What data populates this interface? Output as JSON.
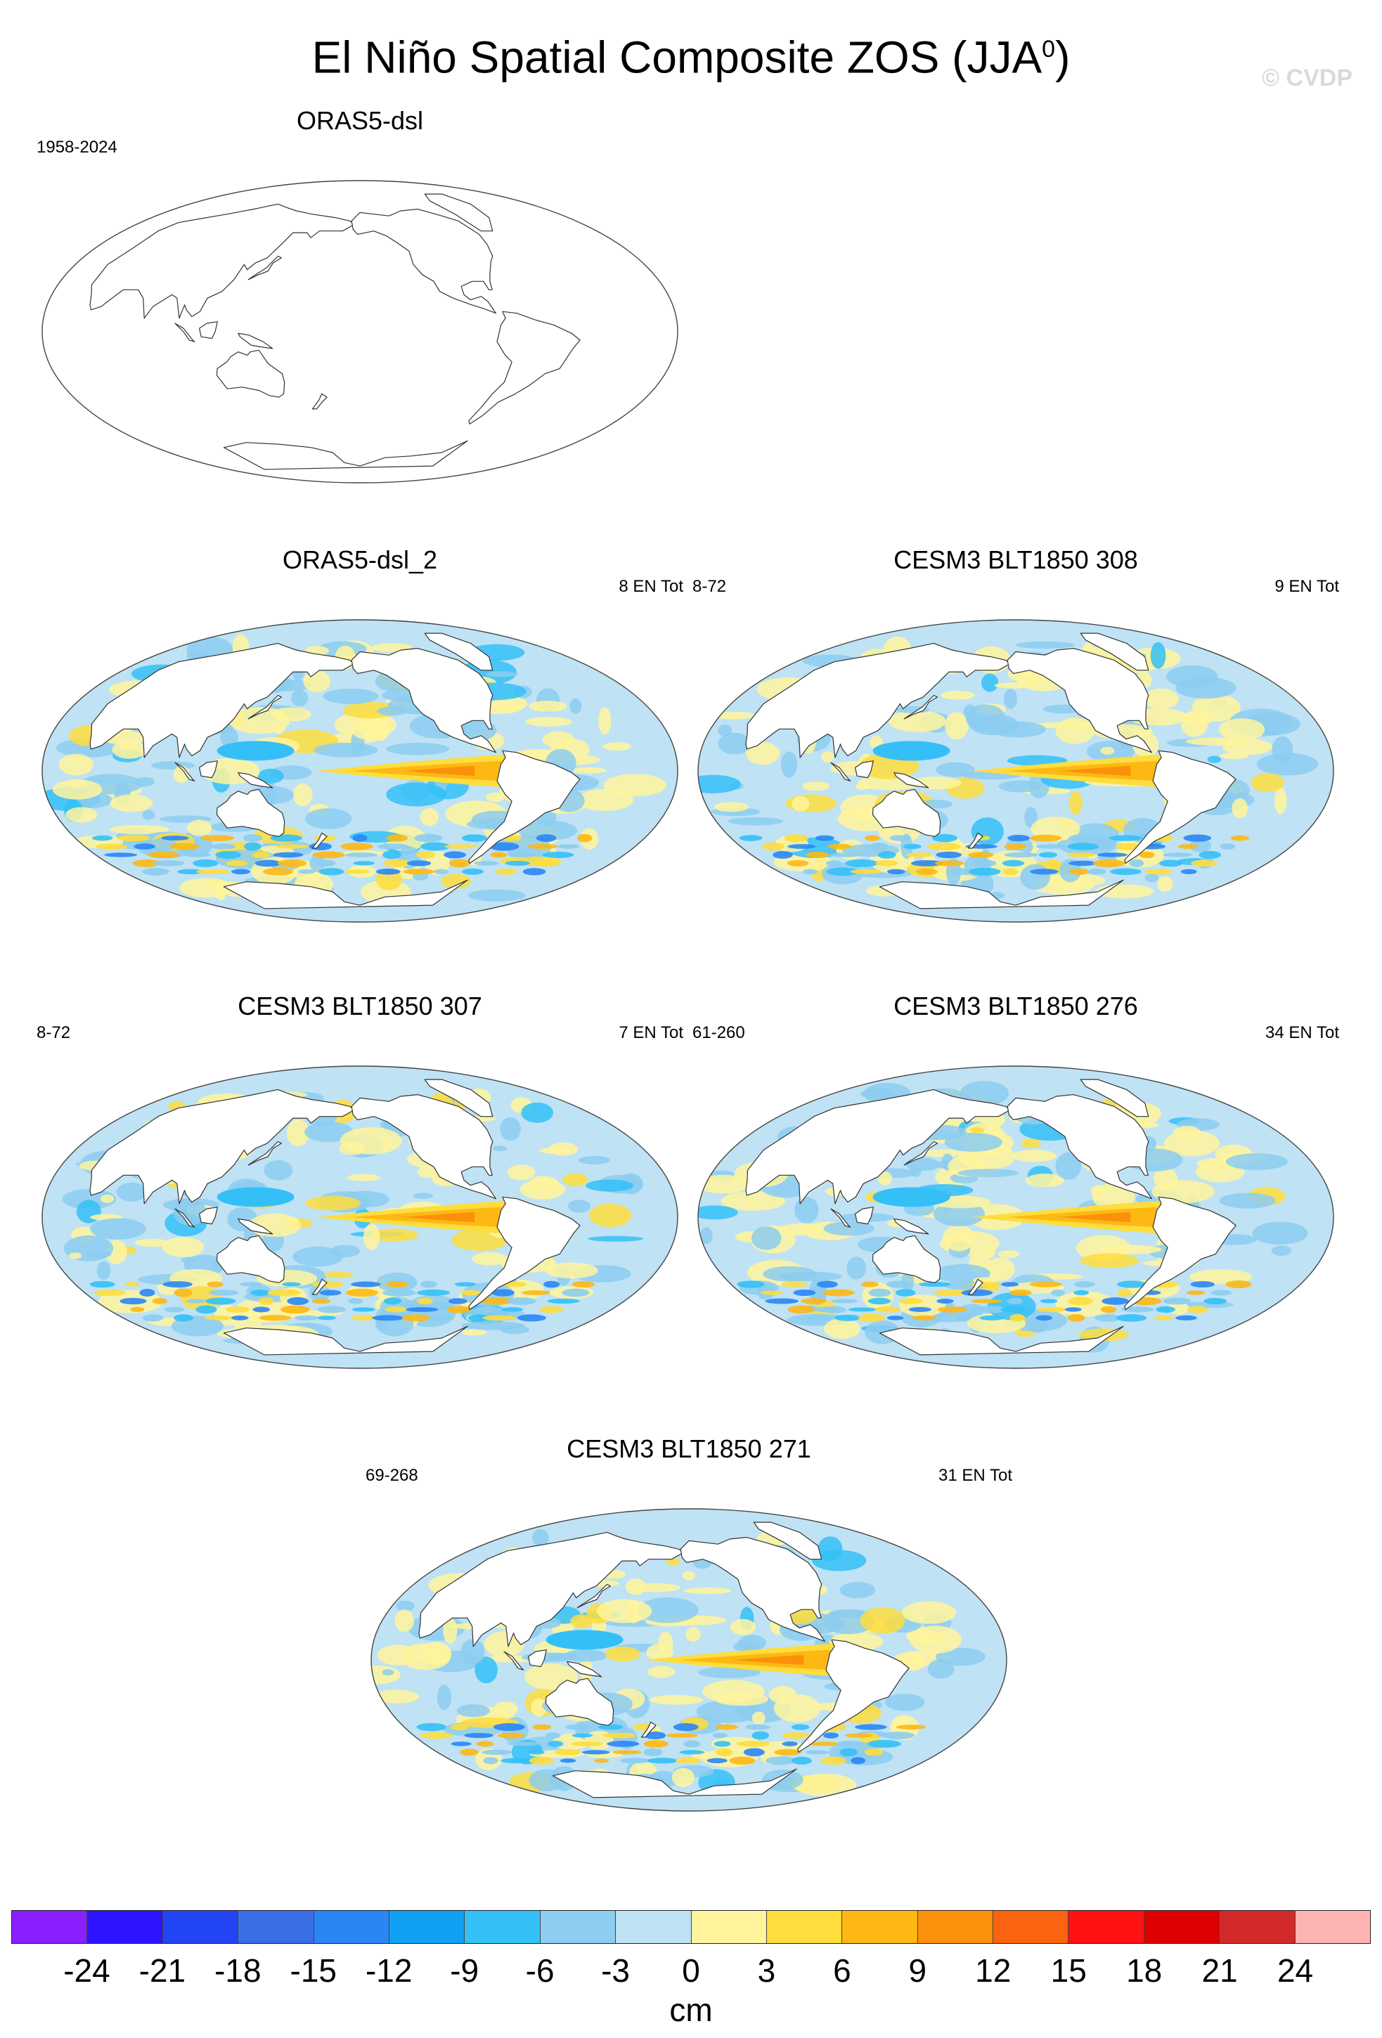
{
  "figure": {
    "title_main": "El Niño Spatial Composite ZOS (JJA",
    "title_sup": "0",
    "title_end": ")",
    "watermark": "© CVDP"
  },
  "panels": [
    {
      "title": "ORAS5-dsl",
      "left_label": "1958-2024",
      "right_label": "",
      "empty": true
    },
    {
      "title": "ORAS5-dsl_2",
      "left_label": "",
      "right_label": "8 EN Tot",
      "empty": false
    },
    {
      "title": "CESM3 BLT1850 308",
      "left_label": "8-72",
      "right_label": "9 EN Tot",
      "empty": false
    },
    {
      "title": "CESM3 BLT1850 307",
      "left_label": "8-72",
      "right_label": "7 EN Tot",
      "empty": false
    },
    {
      "title": "CESM3 BLT1850 276",
      "left_label": "61-260",
      "right_label": "34 EN Tot",
      "empty": false
    },
    {
      "title": "CESM3 BLT1850 271",
      "left_label": "69-268",
      "right_label": "31 EN Tot",
      "empty": false
    }
  ],
  "colorbar": {
    "colors": [
      "#8b1fff",
      "#2d14ff",
      "#2244f2",
      "#3b6fe8",
      "#2a86f4",
      "#12a0f5",
      "#34c0f7",
      "#8ccdf0",
      "#bfe2f4",
      "#fff49c",
      "#fedd3c",
      "#fdb814",
      "#fb900a",
      "#fa6410",
      "#ff1212",
      "#dd0000",
      "#d22a2a",
      "#ffb4b4"
    ],
    "labels": [
      "-24",
      "-21",
      "-18",
      "-15",
      "-12",
      "-9",
      "-6",
      "-3",
      "0",
      "3",
      "6",
      "9",
      "12",
      "15",
      "18",
      "21",
      "24"
    ],
    "units": "cm"
  },
  "map": {
    "ocean_base": "#bfe2f4",
    "land": "#ffffff",
    "coast": "#333333"
  }
}
